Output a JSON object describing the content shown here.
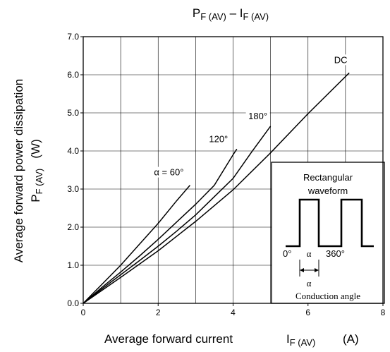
{
  "chart_data": {
    "type": "line",
    "title": {
      "main": "P",
      "sub": "F (AV)",
      "dash": " – ",
      "main2": "I",
      "sub2": "F (AV)"
    },
    "xlabel": {
      "text": "Average forward current",
      "symbol": "I",
      "sub": "F (AV)",
      "unit": "(A)"
    },
    "ylabel": {
      "line1": "Average forward power dissipation",
      "symbol": "P",
      "sub": "F (AV)",
      "unit": "(W)"
    },
    "xlim": [
      0,
      8
    ],
    "ylim": [
      0,
      7
    ],
    "xticks": [
      "0",
      "2",
      "4",
      "6",
      "8"
    ],
    "yticks": [
      "0.0",
      "1.0",
      "2.0",
      "3.0",
      "4.0",
      "5.0",
      "6.0",
      "7.0"
    ],
    "grid": true,
    "series": [
      {
        "name": "α = 60°",
        "x": [
          0,
          0.5,
          1.0,
          1.5,
          2.0,
          2.5,
          2.85
        ],
        "y": [
          0,
          0.5,
          1.0,
          1.55,
          2.1,
          2.7,
          3.1
        ]
      },
      {
        "name": "120°",
        "x": [
          0,
          0.5,
          1.0,
          1.5,
          2.0,
          2.5,
          3.0,
          3.5,
          4.0,
          4.1
        ],
        "y": [
          0,
          0.42,
          0.82,
          1.24,
          1.68,
          2.14,
          2.6,
          3.1,
          3.9,
          4.05
        ]
      },
      {
        "name": "180°",
        "x": [
          0,
          0.5,
          1.0,
          1.5,
          2.0,
          2.5,
          3.0,
          3.5,
          4.0,
          4.5,
          5.0
        ],
        "y": [
          0,
          0.38,
          0.75,
          1.12,
          1.5,
          1.9,
          2.32,
          2.8,
          3.28,
          3.98,
          4.65
        ]
      },
      {
        "name": "DC",
        "x": [
          0,
          1,
          2,
          3,
          4,
          5,
          6,
          7.1
        ],
        "y": [
          0,
          0.68,
          1.38,
          2.15,
          2.98,
          3.95,
          4.98,
          6.05
        ]
      }
    ],
    "inset": {
      "title_line1": "Rectangular",
      "title_line2": "waveform",
      "label_0": "0°",
      "label_alpha": "α",
      "label_360": "360°",
      "label_alpha_below": "α",
      "caption": "Conduction angle"
    }
  }
}
